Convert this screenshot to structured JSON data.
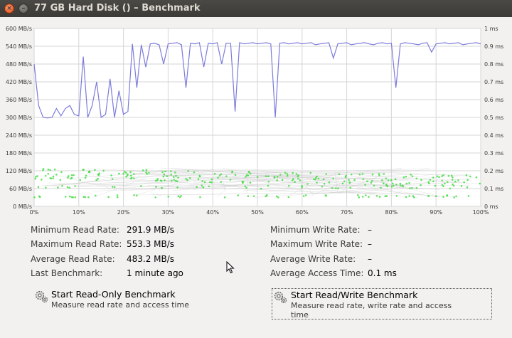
{
  "window": {
    "title": "77 GB Hard Disk () – Benchmark",
    "close_glyph": "×",
    "minimize_glyph": "–"
  },
  "chart_data": {
    "type": "line",
    "left_axis": {
      "unit": "MB/s",
      "ticks": [
        "0 MB/s",
        "60 MB/s",
        "120 MB/s",
        "180 MB/s",
        "240 MB/s",
        "300 MB/s",
        "360 MB/s",
        "420 MB/s",
        "480 MB/s",
        "540 MB/s",
        "600 MB/s"
      ],
      "range": [
        0,
        600
      ]
    },
    "right_axis": {
      "unit": "ms",
      "ticks": [
        "0 ms",
        "0.1 ms",
        "0.2 ms",
        "0.3 ms",
        "0.4 ms",
        "0.5 ms",
        "0.6 ms",
        "0.7 ms",
        "0.8 ms",
        "0.9 ms",
        "1 ms"
      ],
      "range": [
        0,
        1
      ]
    },
    "x_axis": {
      "ticks": [
        "0%",
        "10%",
        "20%",
        "30%",
        "40%",
        "50%",
        "60%",
        "70%",
        "80%",
        "90%",
        "100%"
      ],
      "range": [
        0,
        100
      ]
    },
    "grid": true,
    "series": [
      {
        "kind": "read-rate",
        "color": "#7b7bdc",
        "x": [
          0,
          1,
          2,
          3,
          4,
          5,
          6,
          7,
          8,
          9,
          10,
          11,
          12,
          13,
          14,
          15,
          16,
          17,
          18,
          19,
          20,
          21,
          22,
          23,
          24,
          25,
          26,
          27,
          28,
          29,
          30,
          31,
          32,
          33,
          34,
          35,
          36,
          37,
          38,
          39,
          40,
          41,
          42,
          43,
          44,
          45,
          46,
          47,
          48,
          49,
          50,
          51,
          52,
          53,
          54,
          55,
          56,
          57,
          58,
          59,
          60,
          61,
          62,
          63,
          64,
          65,
          66,
          67,
          68,
          69,
          70,
          71,
          72,
          73,
          74,
          75,
          76,
          77,
          78,
          79,
          80,
          81,
          82,
          83,
          84,
          85,
          86,
          87,
          88,
          89,
          90,
          91,
          92,
          93,
          94,
          95,
          96,
          97,
          98,
          99,
          100
        ],
        "y": [
          480,
          340,
          300,
          298,
          300,
          330,
          305,
          330,
          340,
          310,
          305,
          505,
          300,
          340,
          420,
          300,
          310,
          430,
          300,
          390,
          310,
          320,
          548,
          400,
          545,
          470,
          548,
          550,
          545,
          480,
          548,
          550,
          552,
          545,
          400,
          550,
          548,
          552,
          470,
          550,
          548,
          552,
          480,
          550,
          550,
          320,
          552,
          548,
          550,
          552,
          548,
          550,
          552,
          548,
          300,
          550,
          552,
          548,
          550,
          552,
          548,
          550,
          552,
          545,
          548,
          550,
          552,
          500,
          548,
          550,
          552,
          545,
          548,
          550,
          552,
          548,
          545,
          550,
          552,
          548,
          550,
          400,
          548,
          552,
          550,
          548,
          545,
          550,
          552,
          520,
          548,
          550,
          552,
          548,
          550,
          552,
          545,
          548,
          550,
          552,
          548
        ]
      },
      {
        "kind": "write-rate-scatter",
        "color": "#3cdc3c",
        "range_MBps": [
          30,
          130
        ]
      }
    ]
  },
  "stats": {
    "min_read_label": "Minimum Read Rate:",
    "min_read_value": "291.9 MB/s",
    "max_read_label": "Maximum Read Rate:",
    "max_read_value": "553.3 MB/s",
    "avg_read_label": "Average Read Rate:",
    "avg_read_value": "483.2 MB/s",
    "last_bench_label": "Last Benchmark:",
    "last_bench_value": "1 minute ago",
    "min_write_label": "Minimum Write Rate:",
    "min_write_value": "–",
    "max_write_label": "Maximum Write Rate:",
    "max_write_value": "–",
    "avg_write_label": "Average Write Rate:",
    "avg_write_value": "–",
    "avg_access_label": "Average Access Time:",
    "avg_access_value": "0.1 ms"
  },
  "actions": {
    "readonly_title": "Start Read-Only Benchmark",
    "readonly_subtitle": "Measure read rate and access time",
    "readwrite_title": "Start Read/Write Benchmark",
    "readwrite_subtitle": "Measure read rate, write rate and access time"
  }
}
